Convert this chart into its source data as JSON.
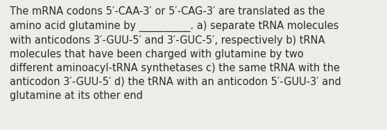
{
  "text": "The mRNA codons 5′-CAA-3′ or 5′-CAG-3′ are translated as the\namino acid glutamine by __________. a) separate tRNA molecules\nwith anticodons 3′-GUU-5′ and 3′-GUC-5′, respectively b) tRNA\nmolecules that have been charged with glutamine by two\ndifferent aminoacyl-tRNA synthetases c) the same tRNA with the\nanticodon 3′-GUU-5′ d) the tRNA with an anticodon 5′-GUU-3′ and\nglutamine at its other end",
  "background_color": "#eeece6",
  "text_color": "#2a2a2a",
  "font_size": 10.5,
  "fig_width": 5.58,
  "fig_height": 1.88,
  "dpi": 100
}
